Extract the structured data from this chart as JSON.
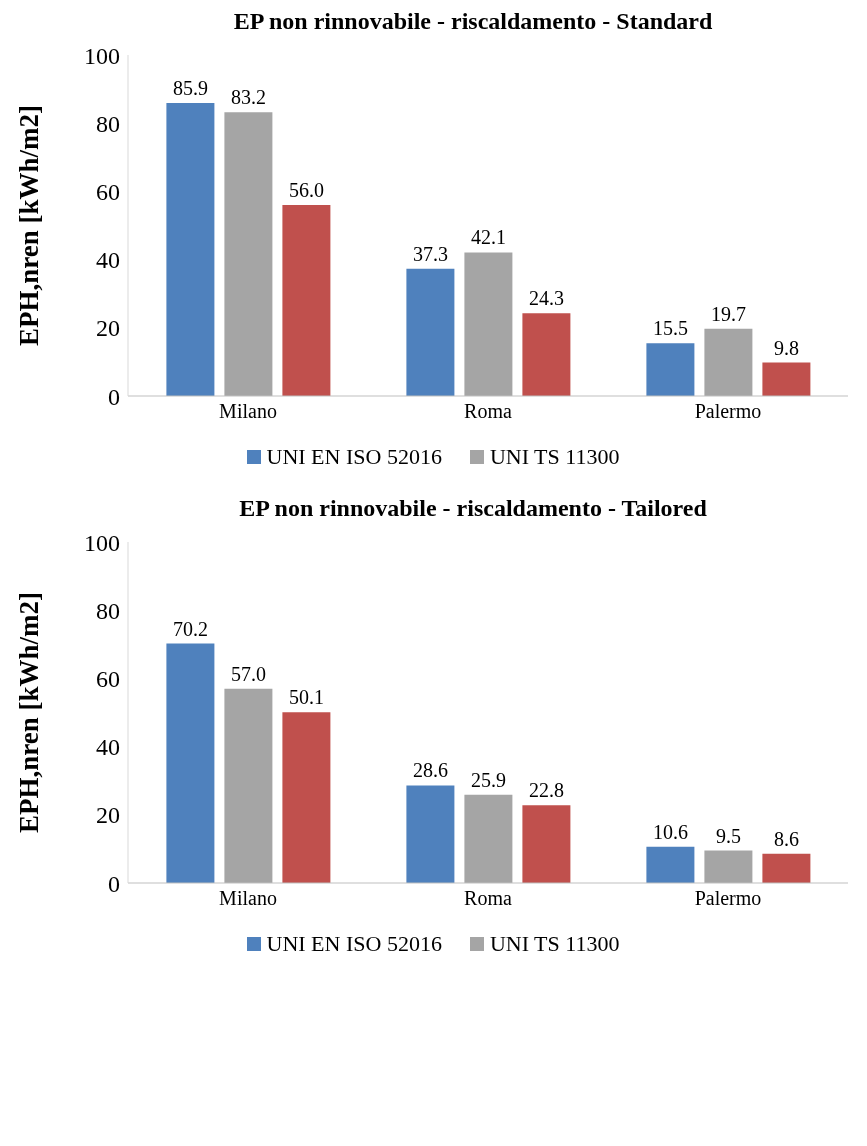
{
  "chart_data": [
    {
      "type": "bar",
      "title": "EP non rinnovabile - riscaldamento - Standard",
      "ylabel": "EPH,nren [kWh/m2]",
      "categories": [
        "Milano",
        "Roma",
        "Palermo"
      ],
      "ylim": [
        0,
        100
      ],
      "yticks": [
        0,
        20,
        40,
        60,
        80,
        100
      ],
      "grid": false,
      "legend": "bottom",
      "series": [
        {
          "name": "UNI EN ISO 52016",
          "color": "#4f81bd",
          "values": [
            85.9,
            37.3,
            15.5
          ],
          "value_labels": [
            "85.9",
            "37.3",
            "15.5"
          ]
        },
        {
          "name": "UNI TS 11300",
          "color": "#a5a5a5",
          "values": [
            83.2,
            42.1,
            19.7
          ],
          "value_labels": [
            "83.2",
            "42.1",
            "19.7"
          ]
        },
        {
          "color": "#c0504d",
          "values": [
            56.0,
            24.3,
            9.8
          ],
          "value_labels": [
            "56.0",
            "24.3",
            "9.8"
          ]
        }
      ]
    },
    {
      "type": "bar",
      "title": "EP non rinnovabile - riscaldamento - Tailored",
      "ylabel": "EPH,nren [kWh/m2]",
      "categories": [
        "Milano",
        "Roma",
        "Palermo"
      ],
      "ylim": [
        0,
        100
      ],
      "yticks": [
        0,
        20,
        40,
        60,
        80,
        100
      ],
      "grid": false,
      "legend": "bottom",
      "series": [
        {
          "name": "UNI EN ISO 52016",
          "color": "#4f81bd",
          "values": [
            70.2,
            28.6,
            10.6
          ],
          "value_labels": [
            "70.2",
            "28.6",
            "10.6"
          ]
        },
        {
          "name": "UNI TS 11300",
          "color": "#a5a5a5",
          "values": [
            57.0,
            25.9,
            9.5
          ],
          "value_labels": [
            "57.0",
            "25.9",
            "9.5"
          ]
        },
        {
          "color": "#c0504d",
          "values": [
            50.1,
            22.8,
            8.6
          ],
          "value_labels": [
            "50.1",
            "22.8",
            "8.6"
          ]
        }
      ]
    }
  ]
}
